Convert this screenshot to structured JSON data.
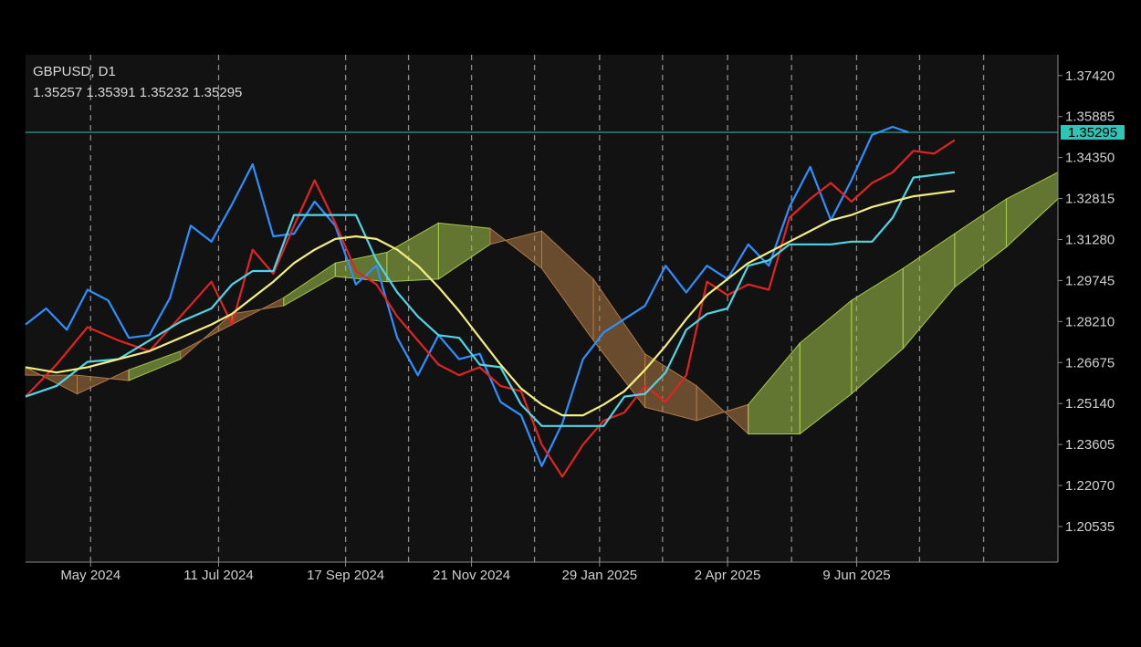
{
  "symbol_label": "GBPUSD, D1",
  "ohlc_label": "1.35257 1.35391 1.35232 1.35295",
  "last_price": 1.35295,
  "last_price_label": "1.35295",
  "colors": {
    "background": "#121212",
    "grid": "#8a8a8a",
    "axis_text": "#d0d0d0",
    "price_line": "#2ec4b6",
    "chikou": "#2f8fff",
    "tenkan": "#e02424",
    "kijun": "#4fd6e6",
    "ma": "#f3ee80",
    "cloud_bull": "#a6c94a",
    "cloud_bear": "#b07a46",
    "candle_up": "#7ab03a",
    "candle_down": "#cc2b2b"
  },
  "chart_data": {
    "type": "line",
    "instrument": "GBPUSD",
    "timeframe": "D1",
    "ylim": [
      1.192,
      1.382
    ],
    "y_ticks": [
      "1.37420",
      "1.35885",
      "1.34350",
      "1.32815",
      "1.31280",
      "1.29745",
      "1.28210",
      "1.26675",
      "1.25140",
      "1.23605",
      "1.22070",
      "1.20535"
    ],
    "x_ticks": [
      "May 2024",
      "11 Jul 2024",
      "17 Sep 2024",
      "21 Nov 2024",
      "29 Jan 2025",
      "2 Apr 2025",
      "9 Jun 2025"
    ],
    "x_range": [
      0,
      100
    ],
    "x_tick_positions": [
      6.3,
      18.7,
      31.0,
      37.1,
      43.2,
      49.3,
      55.6,
      61.7,
      68.0,
      74.2,
      80.5,
      86.6,
      92.8
    ],
    "x_tick_label_positions": [
      6.3,
      18.7,
      31.0,
      43.2,
      55.6,
      68.0,
      80.5
    ],
    "cloud": {
      "x": [
        0,
        5,
        10,
        15,
        20,
        25,
        30,
        35,
        40,
        45,
        50,
        55,
        60,
        65,
        70,
        75,
        80,
        85,
        90,
        95,
        100
      ],
      "span_a": [
        1.265,
        1.255,
        1.264,
        1.271,
        1.281,
        1.291,
        1.304,
        1.308,
        1.319,
        1.317,
        1.302,
        1.275,
        1.25,
        1.245,
        1.251,
        1.274,
        1.29,
        1.302,
        1.315,
        1.328,
        1.338
      ],
      "span_b": [
        1.262,
        1.262,
        1.26,
        1.268,
        1.285,
        1.288,
        1.299,
        1.297,
        1.298,
        1.311,
        1.316,
        1.298,
        1.27,
        1.258,
        1.24,
        1.24,
        1.255,
        1.272,
        1.295,
        1.31,
        1.328
      ]
    },
    "series": [
      {
        "name": "",
        "x": [
          0,
          2,
          4,
          6,
          8,
          10,
          12,
          14,
          16,
          18,
          20,
          22,
          24,
          26,
          28,
          30,
          32,
          34,
          36,
          38,
          40,
          42,
          44,
          46,
          48,
          50,
          52,
          54,
          56,
          58,
          60,
          62,
          64,
          66,
          68,
          70,
          72,
          74,
          76,
          78,
          80,
          82,
          84,
          85.5
        ],
        "y": [
          1.281,
          1.287,
          1.279,
          1.294,
          1.29,
          1.276,
          1.277,
          1.291,
          1.318,
          1.312,
          1.326,
          1.341,
          1.314,
          1.315,
          1.327,
          1.318,
          1.296,
          1.303,
          1.276,
          1.262,
          1.277,
          1.268,
          1.27,
          1.252,
          1.247,
          1.228,
          1.244,
          1.268,
          1.278,
          1.283,
          1.288,
          1.303,
          1.293,
          1.303,
          1.298,
          1.311,
          1.303,
          1.325,
          1.34,
          1.32,
          1.335,
          1.352,
          1.355,
          1.353
        ]
      },
      {
        "name": "",
        "x": [
          0,
          3,
          6,
          9,
          12,
          15,
          18,
          20,
          22,
          24,
          26,
          28,
          30,
          32,
          34,
          36,
          38,
          40,
          42,
          44,
          46,
          48,
          50,
          52,
          54,
          56,
          58,
          60,
          62,
          64,
          66,
          68,
          70,
          72,
          74,
          76,
          78,
          80,
          82,
          84,
          86,
          88,
          90
        ],
        "y": [
          1.254,
          1.266,
          1.28,
          1.275,
          1.271,
          1.284,
          1.297,
          1.281,
          1.309,
          1.3,
          1.318,
          1.335,
          1.319,
          1.301,
          1.296,
          1.284,
          1.275,
          1.266,
          1.262,
          1.265,
          1.258,
          1.256,
          1.236,
          1.224,
          1.236,
          1.245,
          1.248,
          1.258,
          1.252,
          1.262,
          1.297,
          1.292,
          1.296,
          1.294,
          1.321,
          1.328,
          1.334,
          1.327,
          1.334,
          1.338,
          1.346,
          1.345,
          1.35
        ]
      },
      {
        "name": "",
        "x": [
          0,
          3,
          6,
          9,
          12,
          15,
          18,
          20,
          22,
          24,
          26,
          28,
          30,
          32,
          34,
          36,
          38,
          40,
          42,
          44,
          46,
          48,
          50,
          52,
          54,
          56,
          58,
          60,
          62,
          64,
          66,
          68,
          70,
          72,
          74,
          76,
          78,
          80,
          82,
          84,
          86,
          88,
          90
        ],
        "y": [
          1.254,
          1.258,
          1.267,
          1.268,
          1.275,
          1.282,
          1.287,
          1.296,
          1.301,
          1.301,
          1.322,
          1.322,
          1.322,
          1.322,
          1.305,
          1.293,
          1.284,
          1.277,
          1.276,
          1.266,
          1.265,
          1.251,
          1.243,
          1.243,
          1.243,
          1.243,
          1.254,
          1.255,
          1.263,
          1.279,
          1.285,
          1.287,
          1.303,
          1.305,
          1.311,
          1.311,
          1.311,
          1.312,
          1.312,
          1.321,
          1.336,
          1.337,
          1.338
        ]
      },
      {
        "name": "",
        "x": [
          0,
          3,
          6,
          9,
          12,
          15,
          18,
          20,
          22,
          24,
          26,
          28,
          30,
          32,
          34,
          36,
          38,
          40,
          42,
          44,
          46,
          48,
          50,
          52,
          54,
          56,
          58,
          60,
          62,
          64,
          66,
          68,
          70,
          72,
          74,
          76,
          78,
          80,
          82,
          84,
          86,
          88,
          90
        ],
        "y": [
          1.265,
          1.263,
          1.265,
          1.268,
          1.271,
          1.276,
          1.281,
          1.285,
          1.291,
          1.297,
          1.304,
          1.309,
          1.313,
          1.314,
          1.313,
          1.309,
          1.303,
          1.295,
          1.286,
          1.276,
          1.266,
          1.257,
          1.251,
          1.247,
          1.247,
          1.251,
          1.256,
          1.264,
          1.273,
          1.283,
          1.292,
          1.298,
          1.304,
          1.308,
          1.312,
          1.316,
          1.32,
          1.322,
          1.325,
          1.327,
          1.329,
          1.33,
          1.331
        ]
      }
    ]
  }
}
